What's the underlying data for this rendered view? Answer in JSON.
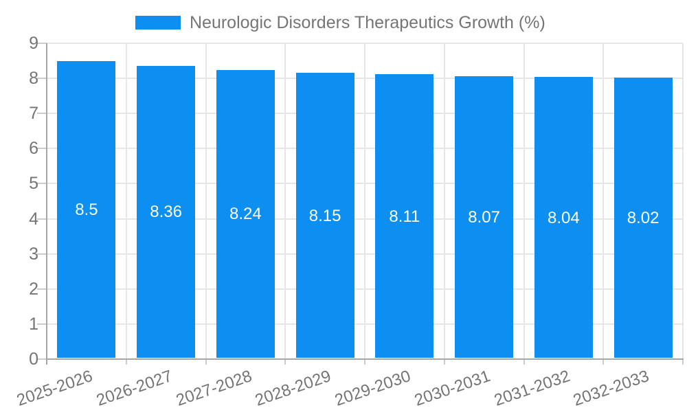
{
  "legend": {
    "label": "Neurologic Disorders Therapeutics Growth (%)"
  },
  "chart_data": {
    "type": "bar",
    "title": "Neurologic Disorders Therapeutics Growth (%)",
    "series_name": "Neurologic Disorders Therapeutics Growth (%)",
    "categories": [
      "2025-2026",
      "2026-2027",
      "2027-2028",
      "2028-2029",
      "2029-2030",
      "2030-2031",
      "2031-2032",
      "2032-2033"
    ],
    "values": [
      8.5,
      8.36,
      8.24,
      8.15,
      8.11,
      8.07,
      8.04,
      8.02
    ],
    "bar_labels": [
      "8.5",
      "8.36",
      "8.24",
      "8.15",
      "8.11",
      "8.07",
      "8.04",
      "8.02"
    ],
    "xlabel": "",
    "ylabel": "",
    "ylim": [
      0,
      9
    ],
    "yticks": [
      0,
      1,
      2,
      3,
      4,
      5,
      6,
      7,
      8,
      9
    ],
    "grid": true,
    "legend_position": "top",
    "colors": {
      "bar": "#0d8ff2",
      "bar_label": "#ffffff",
      "axis_text": "#757575",
      "gridline": "#e6e6e6",
      "axis_line": "#a6a6a6",
      "tick": "#cccccc",
      "background": "#ffffff"
    }
  }
}
